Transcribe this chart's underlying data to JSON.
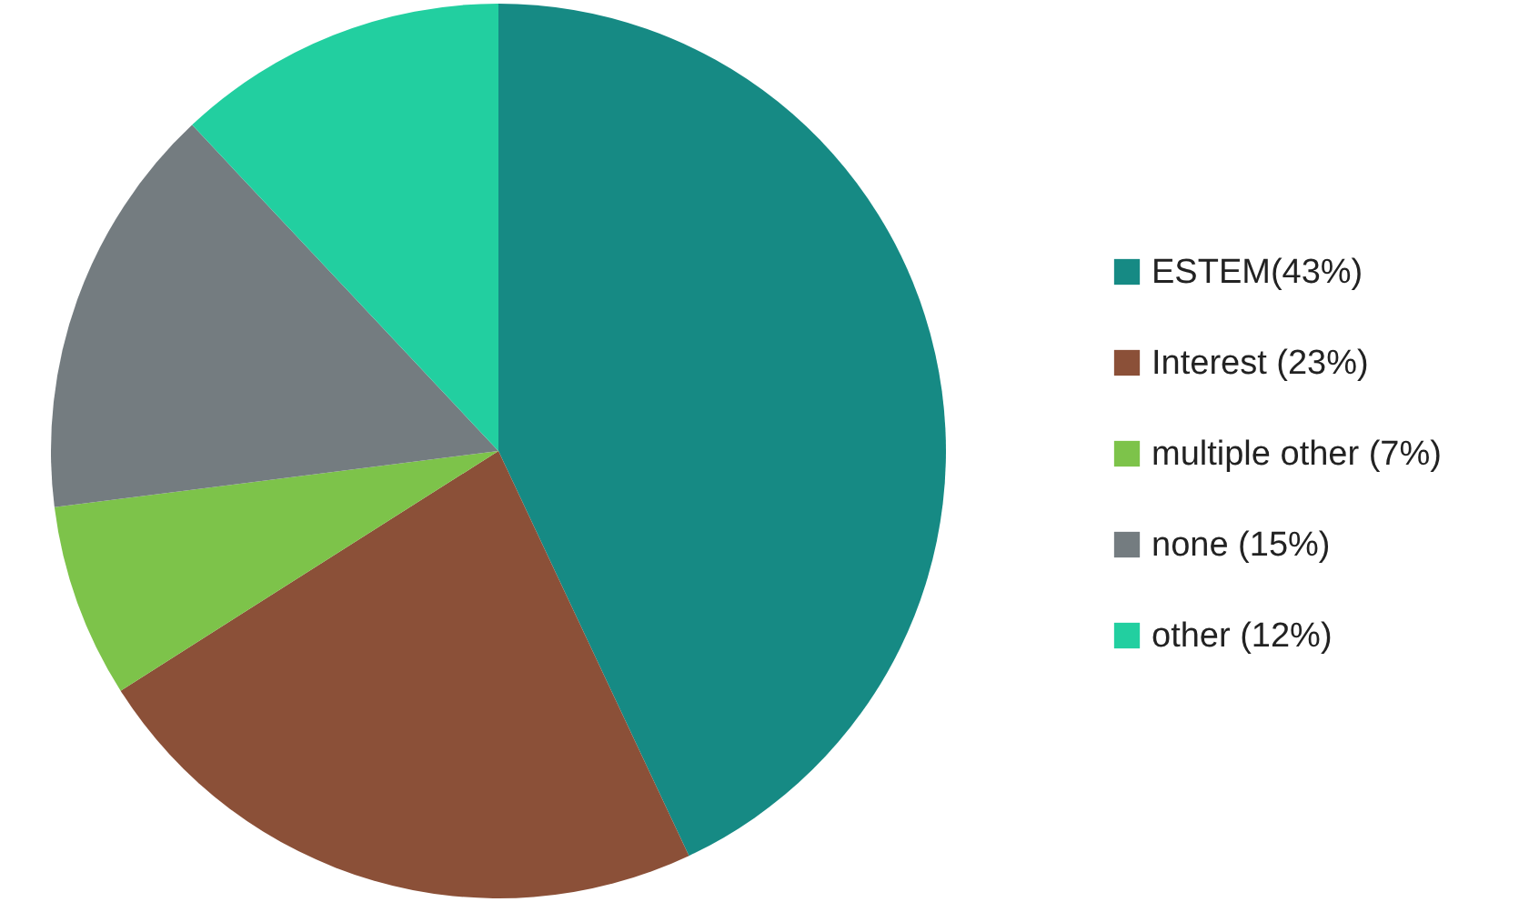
{
  "chart_data": {
    "type": "pie",
    "categories": [
      "ESTEM(43%)",
      "Interest (23%)",
      "multiple other (7%)",
      "none (15%)",
      "other (12%)"
    ],
    "values": [
      43,
      23,
      7,
      15,
      12
    ],
    "colors": [
      "#168a84",
      "#8b5038",
      "#7dc34a",
      "#747c80",
      "#22cfa0"
    ],
    "legend": "right"
  }
}
